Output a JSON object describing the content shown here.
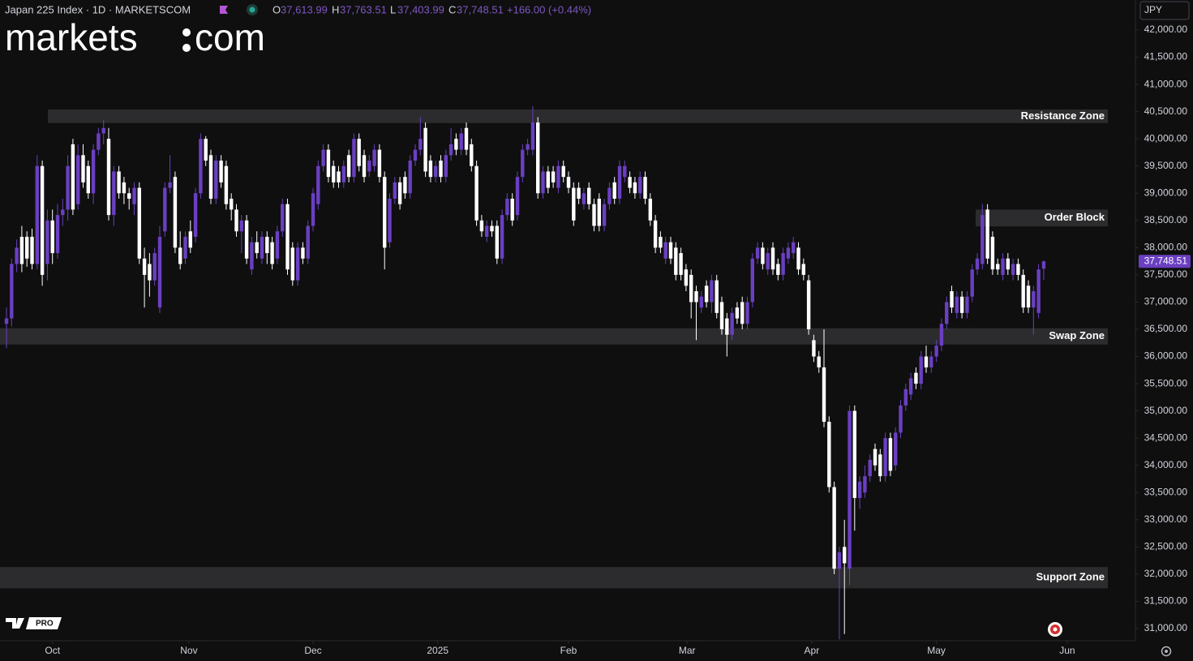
{
  "header": {
    "title": "Japan 225 Index · 1D · MARKETSCOM",
    "ohlc_letters": [
      "O",
      "H",
      "L",
      "C"
    ],
    "ohlc_labels": [
      "37,613.99",
      "37,763.51",
      "37,403.99",
      "37,748.51"
    ],
    "change": "+166.00 (+0.44%)"
  },
  "logo": [
    "markets",
    "com"
  ],
  "currency": "JPY",
  "pro_badge": "PRO",
  "chart_data": {
    "type": "candlestick",
    "up_color": "#6a3fc1",
    "down_color": "#ffffff",
    "candles": [
      [
        36600,
        36900,
        36150,
        36700
      ],
      [
        36700,
        37800,
        36550,
        37700
      ],
      [
        37700,
        38150,
        37550,
        38000
      ],
      [
        38200,
        38400,
        37550,
        37700
      ],
      [
        38200,
        38300,
        37650,
        37800
      ],
      [
        38200,
        38350,
        37600,
        37700
      ],
      [
        37700,
        39700,
        37600,
        39500
      ],
      [
        39500,
        39600,
        37300,
        37500
      ],
      [
        37700,
        38700,
        37400,
        38500
      ],
      [
        38500,
        38700,
        37700,
        37900
      ],
      [
        37900,
        38800,
        37800,
        38600
      ],
      [
        38600,
        38900,
        38400,
        38700
      ],
      [
        38700,
        39700,
        38500,
        39500
      ],
      [
        39900,
        40000,
        38600,
        38700
      ],
      [
        38800,
        39900,
        38700,
        39700
      ],
      [
        39700,
        39900,
        39100,
        39200
      ],
      [
        39500,
        39600,
        38900,
        39000
      ],
      [
        39000,
        39900,
        38800,
        39800
      ],
      [
        39800,
        40200,
        39700,
        40100
      ],
      [
        40100,
        40350,
        39900,
        40200
      ],
      [
        40000,
        40200,
        38500,
        38600
      ],
      [
        38600,
        39500,
        38400,
        39400
      ],
      [
        39400,
        39500,
        38900,
        39000
      ],
      [
        39200,
        39300,
        38800,
        39000
      ],
      [
        39000,
        39100,
        38700,
        38900
      ],
      [
        38800,
        39200,
        38600,
        39100
      ],
      [
        39100,
        39200,
        37700,
        37800
      ],
      [
        37800,
        38000,
        36900,
        37500
      ],
      [
        37700,
        37900,
        37100,
        37400
      ],
      [
        37400,
        38000,
        37300,
        37900
      ],
      [
        36900,
        38400,
        36800,
        38200
      ],
      [
        38300,
        39200,
        38200,
        39100
      ],
      [
        39100,
        39700,
        39000,
        39200
      ],
      [
        39300,
        39400,
        37900,
        38000
      ],
      [
        38000,
        38300,
        37600,
        37700
      ],
      [
        37800,
        38300,
        37700,
        38200
      ],
      [
        38300,
        38500,
        37900,
        38000
      ],
      [
        38200,
        39100,
        38100,
        39000
      ],
      [
        39000,
        40100,
        38900,
        40000
      ],
      [
        40000,
        40050,
        39500,
        39600
      ],
      [
        39700,
        39800,
        38800,
        38900
      ],
      [
        38900,
        39700,
        38800,
        39600
      ],
      [
        39600,
        39700,
        39100,
        39200
      ],
      [
        39500,
        39600,
        38700,
        38800
      ],
      [
        38900,
        39000,
        38500,
        38700
      ],
      [
        38700,
        38800,
        38200,
        38300
      ],
      [
        38300,
        38600,
        37900,
        38500
      ],
      [
        38500,
        38600,
        37700,
        37800
      ],
      [
        37600,
        38200,
        37500,
        38100
      ],
      [
        38100,
        38300,
        37800,
        37900
      ],
      [
        37800,
        38300,
        37700,
        38200
      ],
      [
        38200,
        38300,
        37700,
        37900
      ],
      [
        38100,
        38200,
        37600,
        37700
      ],
      [
        37800,
        38400,
        37700,
        38300
      ],
      [
        38300,
        38900,
        38200,
        38800
      ],
      [
        38800,
        38900,
        37500,
        37600
      ],
      [
        38000,
        38100,
        37300,
        37400
      ],
      [
        37400,
        38100,
        37300,
        38000
      ],
      [
        38000,
        38100,
        37700,
        37800
      ],
      [
        37800,
        38500,
        37700,
        38400
      ],
      [
        38400,
        39100,
        38300,
        39000
      ],
      [
        38800,
        39600,
        38700,
        39500
      ],
      [
        39500,
        39900,
        39400,
        39800
      ],
      [
        39800,
        39900,
        39200,
        39300
      ],
      [
        39500,
        39600,
        39100,
        39200
      ],
      [
        39400,
        39500,
        39100,
        39200
      ],
      [
        39200,
        39600,
        39100,
        39500
      ],
      [
        39700,
        39800,
        39200,
        39300
      ],
      [
        39300,
        40100,
        39200,
        40000
      ],
      [
        40000,
        40100,
        39400,
        39500
      ],
      [
        39700,
        39800,
        39200,
        39300
      ],
      [
        39400,
        39700,
        39300,
        39600
      ],
      [
        39500,
        39900,
        39400,
        39800
      ],
      [
        39800,
        39900,
        39200,
        39300
      ],
      [
        39300,
        39400,
        37600,
        38000
      ],
      [
        38100,
        39000,
        38000,
        38900
      ],
      [
        38900,
        39300,
        38800,
        39200
      ],
      [
        39200,
        39300,
        38700,
        38800
      ],
      [
        39300,
        39400,
        38900,
        39000
      ],
      [
        39000,
        39700,
        38900,
        39600
      ],
      [
        39600,
        39900,
        39500,
        39800
      ],
      [
        39800,
        40400,
        39700,
        40000
      ],
      [
        40200,
        40300,
        39300,
        39400
      ],
      [
        39600,
        39700,
        39200,
        39300
      ],
      [
        39300,
        39600,
        39200,
        39500
      ],
      [
        39600,
        39700,
        39200,
        39300
      ],
      [
        39300,
        39800,
        39200,
        39700
      ],
      [
        39700,
        40200,
        39600,
        39900
      ],
      [
        40000,
        40100,
        39700,
        39800
      ],
      [
        39800,
        40200,
        39700,
        40100
      ],
      [
        40200,
        40300,
        39700,
        39800
      ],
      [
        39900,
        40000,
        39400,
        39500
      ],
      [
        39500,
        39600,
        38400,
        38500
      ],
      [
        38500,
        38600,
        38200,
        38300
      ],
      [
        38200,
        38500,
        38100,
        38400
      ],
      [
        38400,
        38500,
        38200,
        38300
      ],
      [
        38400,
        38500,
        37700,
        37800
      ],
      [
        37800,
        38700,
        37700,
        38600
      ],
      [
        38600,
        39000,
        38500,
        38900
      ],
      [
        38900,
        39000,
        38400,
        38500
      ],
      [
        38600,
        39400,
        38500,
        39300
      ],
      [
        39300,
        39900,
        39200,
        39800
      ],
      [
        39800,
        40000,
        39700,
        39900
      ],
      [
        39800,
        40600,
        39700,
        40300
      ],
      [
        40300,
        40400,
        38900,
        39000
      ],
      [
        39000,
        39500,
        38900,
        39400
      ],
      [
        39400,
        39500,
        39000,
        39100
      ],
      [
        39400,
        39500,
        39100,
        39200
      ],
      [
        39100,
        39600,
        39000,
        39500
      ],
      [
        39500,
        39600,
        39200,
        39300
      ],
      [
        39300,
        39400,
        39000,
        39100
      ],
      [
        39100,
        39200,
        38400,
        38500
      ],
      [
        39100,
        39200,
        38800,
        38900
      ],
      [
        38800,
        39100,
        38700,
        39000
      ],
      [
        39100,
        39200,
        38700,
        38800
      ],
      [
        38800,
        38900,
        38300,
        38400
      ],
      [
        38900,
        39000,
        38300,
        38400
      ],
      [
        38400,
        38900,
        38300,
        38800
      ],
      [
        38800,
        39200,
        38700,
        39100
      ],
      [
        39200,
        39300,
        38800,
        38900
      ],
      [
        38900,
        39600,
        38800,
        39500
      ],
      [
        39300,
        39600,
        39200,
        39500
      ],
      [
        39300,
        39400,
        39000,
        39100
      ],
      [
        39200,
        39300,
        38900,
        39000
      ],
      [
        39000,
        39400,
        38900,
        39300
      ],
      [
        39300,
        39400,
        38800,
        38900
      ],
      [
        38900,
        39000,
        38400,
        38500
      ],
      [
        38500,
        38600,
        37900,
        38000
      ],
      [
        38200,
        38300,
        37900,
        38000
      ],
      [
        37800,
        38200,
        37700,
        38100
      ],
      [
        38100,
        38200,
        37700,
        37800
      ],
      [
        38000,
        38100,
        37400,
        37500
      ],
      [
        37900,
        38000,
        37400,
        37500
      ],
      [
        37600,
        37700,
        37200,
        37300
      ],
      [
        37500,
        37600,
        36700,
        37000
      ],
      [
        37200,
        37300,
        36300,
        37000
      ],
      [
        36900,
        37200,
        36800,
        37100
      ],
      [
        37300,
        37400,
        36900,
        37000
      ],
      [
        37000,
        37500,
        36800,
        37400
      ],
      [
        37400,
        37500,
        36700,
        36800
      ],
      [
        37000,
        37100,
        36400,
        36500
      ],
      [
        36700,
        36800,
        36000,
        36400
      ],
      [
        36400,
        36900,
        36300,
        36800
      ],
      [
        36900,
        37000,
        36600,
        36700
      ],
      [
        37000,
        37100,
        36500,
        36600
      ],
      [
        36600,
        37100,
        36500,
        37000
      ],
      [
        37000,
        37900,
        36900,
        37800
      ],
      [
        37800,
        38100,
        37700,
        38000
      ],
      [
        38000,
        38100,
        37600,
        37700
      ],
      [
        37600,
        38000,
        37500,
        37900
      ],
      [
        38000,
        38100,
        37500,
        37600
      ],
      [
        37700,
        37800,
        37400,
        37500
      ],
      [
        37500,
        38000,
        37400,
        37900
      ],
      [
        37800,
        38100,
        37700,
        38000
      ],
      [
        37900,
        38200,
        37800,
        38100
      ],
      [
        38000,
        38100,
        37500,
        37600
      ],
      [
        37700,
        37800,
        37400,
        37500
      ],
      [
        37400,
        37500,
        36400,
        36500
      ],
      [
        36300,
        36400,
        35900,
        36000
      ],
      [
        36000,
        36100,
        35700,
        35800
      ],
      [
        35800,
        36500,
        34700,
        34800
      ],
      [
        34800,
        34900,
        33500,
        33600
      ],
      [
        33600,
        33700,
        32000,
        32100
      ],
      [
        32100,
        32500,
        30800,
        32400
      ],
      [
        32500,
        33000,
        30900,
        32200
      ],
      [
        32100,
        35100,
        31800,
        35000
      ],
      [
        35000,
        35100,
        32800,
        33400
      ],
      [
        33400,
        33800,
        33200,
        33700
      ],
      [
        33500,
        34000,
        33400,
        33800
      ],
      [
        33800,
        34200,
        33700,
        34100
      ],
      [
        34300,
        34400,
        33900,
        34000
      ],
      [
        34200,
        34300,
        33700,
        33800
      ],
      [
        33800,
        34600,
        33700,
        34500
      ],
      [
        34500,
        34600,
        33800,
        33900
      ],
      [
        34000,
        34700,
        33900,
        34600
      ],
      [
        34600,
        35200,
        34500,
        35100
      ],
      [
        35100,
        35500,
        35000,
        35400
      ],
      [
        35300,
        35700,
        35200,
        35600
      ],
      [
        35700,
        35800,
        35400,
        35500
      ],
      [
        35500,
        36100,
        35400,
        36000
      ],
      [
        36000,
        36200,
        35700,
        35800
      ],
      [
        35800,
        36100,
        35700,
        36000
      ],
      [
        36000,
        36300,
        35900,
        36200
      ],
      [
        36200,
        36700,
        36100,
        36600
      ],
      [
        36600,
        37100,
        36500,
        37000
      ],
      [
        37200,
        37300,
        36800,
        36900
      ],
      [
        36800,
        37200,
        36700,
        37100
      ],
      [
        37100,
        37200,
        36700,
        36800
      ],
      [
        36800,
        37200,
        36700,
        37100
      ],
      [
        37100,
        37700,
        37000,
        37600
      ],
      [
        37600,
        37900,
        37500,
        37800
      ],
      [
        37700,
        38800,
        37600,
        38600
      ],
      [
        38700,
        38800,
        37700,
        37800
      ],
      [
        38200,
        38300,
        37500,
        37600
      ],
      [
        37700,
        37800,
        37500,
        37600
      ],
      [
        37500,
        37900,
        37400,
        37800
      ],
      [
        37800,
        37900,
        37500,
        37600
      ],
      [
        37500,
        37800,
        37400,
        37700
      ],
      [
        37700,
        37800,
        37400,
        37500
      ],
      [
        37500,
        37600,
        36800,
        36900
      ],
      [
        37300,
        37400,
        36800,
        36900
      ],
      [
        36900,
        37300,
        36400,
        37200
      ],
      [
        36800,
        37700,
        36700,
        37600
      ],
      [
        37613.99,
        37763.51,
        37403.99,
        37748.51
      ]
    ],
    "ylim": [
      31000,
      42000
    ],
    "yticks": [
      {
        "value": 31000,
        "label": "31,000.00"
      },
      {
        "value": 31500,
        "label": "31,500.00"
      },
      {
        "value": 32000,
        "label": "32,000.00"
      },
      {
        "value": 32500,
        "label": "32,500.00"
      },
      {
        "value": 33000,
        "label": "33,000.00"
      },
      {
        "value": 33500,
        "label": "33,500.00"
      },
      {
        "value": 34000,
        "label": "34,000.00"
      },
      {
        "value": 34500,
        "label": "34,500.00"
      },
      {
        "value": 35000,
        "label": "35,000.00"
      },
      {
        "value": 35500,
        "label": "35,500.00"
      },
      {
        "value": 36000,
        "label": "36,000.00"
      },
      {
        "value": 36500,
        "label": "36,500.00"
      },
      {
        "value": 37000,
        "label": "37,000.00"
      },
      {
        "value": 37500,
        "label": "37,500.00"
      },
      {
        "value": 38000,
        "label": "38,000.00"
      },
      {
        "value": 38500,
        "label": "38,500.00"
      },
      {
        "value": 39000,
        "label": "39,000.00"
      },
      {
        "value": 39500,
        "label": "39,500.00"
      },
      {
        "value": 40000,
        "label": "40,000.00"
      },
      {
        "value": 40500,
        "label": "40,500.00"
      },
      {
        "value": 41000,
        "label": "41,000.00"
      },
      {
        "value": 41500,
        "label": "41,500.00"
      },
      {
        "value": 42000,
        "label": "42,000.00"
      }
    ],
    "xlim": [
      -1.27,
      220.95
    ],
    "xticks": [
      {
        "value": 9,
        "label": "Oct"
      },
      {
        "value": 35.7,
        "label": "Nov"
      },
      {
        "value": 60,
        "label": "Dec"
      },
      {
        "value": 84.4,
        "label": "2025"
      },
      {
        "value": 110,
        "label": "Feb"
      },
      {
        "value": 133.2,
        "label": "Mar"
      },
      {
        "value": 157.6,
        "label": "Apr"
      },
      {
        "value": 182,
        "label": "May"
      },
      {
        "value": 207.6,
        "label": "Jun"
      }
    ],
    "zones": [
      {
        "label": "Resistance Zone",
        "from": 40290,
        "to": 40540
      },
      {
        "label": "Order Block",
        "from": 38390,
        "to": 38700
      },
      {
        "label": "Swap Zone",
        "from": 36220,
        "to": 36520
      },
      {
        "label": "Support Zone",
        "from": 31740,
        "to": 32130
      }
    ],
    "last_price": {
      "value": 37748.51,
      "label": "37,748.51"
    }
  }
}
